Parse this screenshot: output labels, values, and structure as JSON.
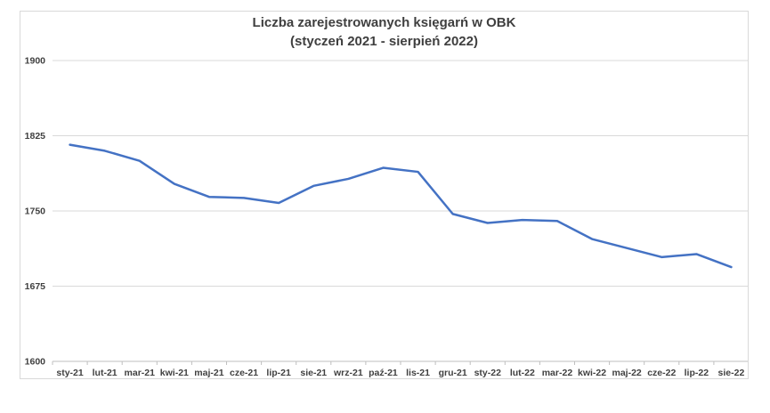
{
  "chart_data": {
    "type": "line",
    "title_line1": "Liczba zarejestrowanych księgarń w OBK",
    "title_line2": "(styczeń 2021 - sierpień 2022)",
    "categories": [
      "sty-21",
      "lut-21",
      "mar-21",
      "kwi-21",
      "maj-21",
      "cze-21",
      "lip-21",
      "sie-21",
      "wrz-21",
      "paź-21",
      "lis-21",
      "gru-21",
      "sty-22",
      "lut-22",
      "mar-22",
      "kwi-22",
      "maj-22",
      "cze-22",
      "lip-22",
      "sie-22"
    ],
    "values": [
      1816,
      1810,
      1800,
      1777,
      1764,
      1763,
      1758,
      1775,
      1782,
      1793,
      1789,
      1747,
      1738,
      1741,
      1740,
      1722,
      1713,
      1704,
      1707,
      1694
    ],
    "ylim": [
      1600,
      1900
    ],
    "yticks": [
      1600,
      1675,
      1750,
      1825,
      1900
    ],
    "grid": true,
    "legend_position": "none",
    "colors": {
      "line": "#4472C4",
      "gridline": "#d9d9d9",
      "axis": "#bfbfbf",
      "label": "#404040",
      "title": "#3f3f3f",
      "frame_border": "#d9d9d9",
      "background": "#ffffff"
    }
  }
}
